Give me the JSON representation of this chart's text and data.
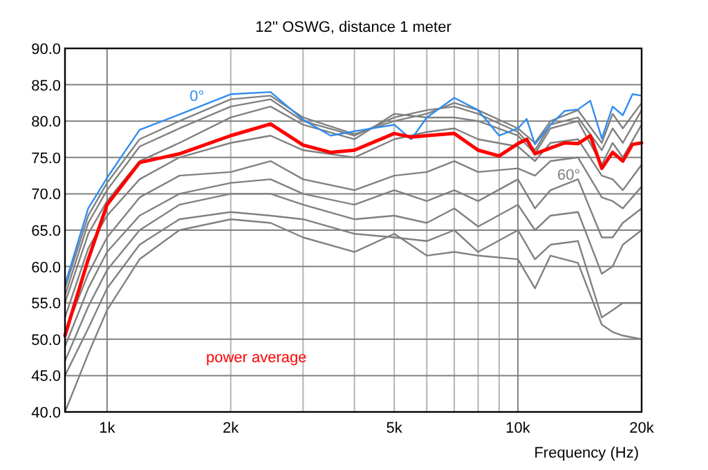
{
  "chart_data": {
    "type": "line",
    "title": "12'' OSWG, distance 1 meter",
    "xlabel": "Frequency (Hz)",
    "log": "x",
    "grid": true,
    "marker": "none",
    "line_style": "solid",
    "xlim": [
      790,
      20000
    ],
    "xticks": [
      {
        "value": 1000,
        "label": "1k"
      },
      {
        "value": 2000,
        "label": "2k"
      },
      {
        "value": 3000,
        "label": null
      },
      {
        "value": 4000,
        "label": null
      },
      {
        "value": 5000,
        "label": "5k"
      },
      {
        "value": 6000,
        "label": null
      },
      {
        "value": 7000,
        "label": null
      },
      {
        "value": 8000,
        "label": null
      },
      {
        "value": 9000,
        "label": null
      },
      {
        "value": 10000,
        "label": "10k"
      },
      {
        "value": 20000,
        "label": "20k"
      }
    ],
    "ylim": [
      40,
      90
    ],
    "yticks": [
      {
        "value": 40,
        "label": "40.0"
      },
      {
        "value": 45,
        "label": "45.0"
      },
      {
        "value": 50,
        "label": "50.0"
      },
      {
        "value": 55,
        "label": "55.0"
      },
      {
        "value": 60,
        "label": "60.0"
      },
      {
        "value": 65,
        "label": "65.0"
      },
      {
        "value": 70,
        "label": "70.0"
      },
      {
        "value": 75,
        "label": "75.0"
      },
      {
        "value": 80,
        "label": "80.0"
      },
      {
        "value": 85,
        "label": "85.0"
      },
      {
        "value": 90,
        "label": "90.0"
      }
    ],
    "x": [
      790,
      900,
      1000,
      1200,
      1500,
      2000,
      2500,
      3000,
      4000,
      5000,
      6000,
      7000,
      8000,
      10000,
      11000,
      12000,
      14000,
      16000,
      17000,
      18000,
      20000
    ],
    "series": [
      {
        "color": "#808080",
        "values": [
          40,
          48,
          54,
          61,
          65,
          66.5,
          66,
          64,
          62,
          64.5,
          61.5,
          62,
          61.5,
          61,
          57,
          61.5,
          60.5,
          52,
          51,
          50.5,
          50
        ]
      },
      {
        "color": "#808080",
        "values": [
          45,
          51.5,
          57,
          63,
          66.5,
          67.5,
          67,
          66.5,
          64.5,
          64,
          63.5,
          65,
          62,
          65,
          61,
          63,
          63.5,
          53,
          54,
          55,
          55
        ]
      },
      {
        "color": "#808080",
        "values": [
          47,
          54.5,
          59.5,
          65,
          68.5,
          70,
          70,
          68.5,
          66.5,
          67,
          66,
          68,
          65.5,
          68.5,
          65,
          67,
          67.5,
          59,
          60,
          63,
          65
        ]
      },
      {
        "color": "#808080",
        "values": [
          49,
          57,
          62,
          67,
          70,
          71.5,
          72,
          70,
          68.5,
          70.5,
          69,
          70.5,
          69,
          72,
          68,
          70.5,
          72,
          64,
          64,
          66,
          68
        ]
      },
      {
        "color": "#808080",
        "values": [
          51,
          59,
          64,
          69.5,
          72.5,
          73,
          74.5,
          72,
          70.5,
          72.5,
          73,
          74.5,
          73,
          73.5,
          72.5,
          74.5,
          75,
          69.5,
          69,
          68,
          71
        ]
      },
      {
        "color": "#808080",
        "values": [
          53,
          62.5,
          67,
          72,
          75,
          77,
          78,
          76,
          75,
          77.5,
          78.5,
          79,
          77.5,
          76.5,
          74.5,
          77,
          77.5,
          72.5,
          72,
          70.5,
          74
        ]
      },
      {
        "color": "#808080",
        "values": [
          55,
          64.5,
          69,
          74.5,
          77,
          80.5,
          82,
          79.5,
          77.5,
          81,
          80.5,
          80.5,
          80,
          78,
          75.5,
          79,
          80,
          74,
          77,
          75,
          79.5
        ]
      },
      {
        "color": "#808080",
        "values": [
          56,
          66,
          70.5,
          76.5,
          79,
          82,
          83,
          80,
          78,
          80.5,
          81.5,
          82,
          81,
          78.5,
          76,
          79.5,
          80.5,
          76,
          79,
          77,
          81.5
        ]
      },
      {
        "color": "#808080",
        "values": [
          57,
          67,
          71.5,
          77.5,
          80,
          83,
          83.5,
          80.5,
          78.2,
          80,
          81,
          82.5,
          81.5,
          79,
          77,
          80,
          81.5,
          77,
          81,
          79,
          82.5
        ]
      },
      {
        "color": "#2f8cf0",
        "x": [
          790,
          900,
          1000,
          1200,
          1500,
          2000,
          2500,
          3000,
          3500,
          4000,
          5000,
          5500,
          6000,
          7000,
          8000,
          9000,
          10000,
          10500,
          11000,
          12000,
          13000,
          14000,
          15000,
          16000,
          17000,
          18000,
          19000,
          20000
        ],
        "values": [
          57.5,
          68,
          72.2,
          78.8,
          80.9,
          83.7,
          84,
          80.2,
          78,
          78.6,
          79.5,
          77.5,
          80.5,
          83.2,
          81.5,
          78,
          79,
          80.3,
          76.8,
          79.5,
          81.4,
          81.6,
          82.8,
          77.6,
          82,
          80.8,
          83.7,
          83.5
        ]
      },
      {
        "name": "power average",
        "color": "#ff0000",
        "x": [
          790,
          900,
          1000,
          1200,
          1500,
          2000,
          2500,
          3000,
          3500,
          4000,
          5000,
          5500,
          6000,
          7000,
          8000,
          9000,
          10000,
          10500,
          11000,
          12000,
          13000,
          14000,
          15000,
          16000,
          17000,
          18000,
          19000,
          20000
        ],
        "values": [
          50.5,
          61,
          68.5,
          74.3,
          75.5,
          78,
          79.6,
          76.7,
          75.7,
          76,
          78.3,
          77.8,
          78,
          78.3,
          76,
          75.2,
          76.9,
          77.5,
          75.5,
          76.3,
          77,
          76.9,
          78,
          73.5,
          75.7,
          74.5,
          76.8,
          77
        ]
      }
    ],
    "annotations": [
      {
        "text": "0°",
        "x": 1655,
        "y": 82.0
      },
      {
        "text": "60°",
        "x": 13300,
        "y": 71.2
      }
    ]
  }
}
